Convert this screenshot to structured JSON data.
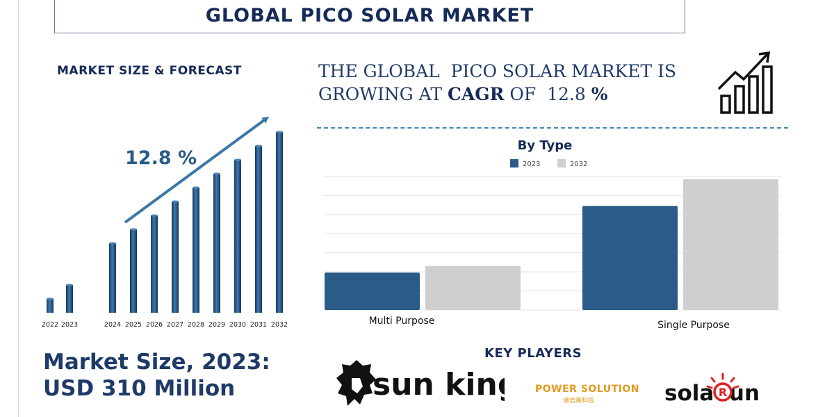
{
  "header": {
    "title": "GLOBAL PICO SOLAR MARKET"
  },
  "forecast": {
    "heading": "MARKET SIZE & FORECAST",
    "cagr_label": "12.8 %",
    "market_size_line1": "Market Size, 2023:",
    "market_size_line2": "USD 310 Million"
  },
  "headline": {
    "line1": "THE GLOBAL  PICO SOLAR MARKET IS",
    "line2_prefix": "GROWING AT ",
    "line2_cagr": "CAGR",
    "line2_middle": " OF  12.8 ",
    "line2_pct": "%"
  },
  "key_players": {
    "heading": "KEY PLAYERS",
    "sun_king": "sun king",
    "power_solution": "POWER SOLUTION",
    "power_solution_sub": "诚信阑科技",
    "solarun": "sola  un",
    "solarun_mark": "R"
  },
  "colors": {
    "bar_2023": "#2a5b89",
    "bar_2032": "#cfcfcf",
    "navy": "#152a57"
  },
  "icons": [
    "growth-chart-icon",
    "lion-logo-icon",
    "bulb-logo-icon"
  ],
  "chart_data": [
    {
      "type": "bar",
      "title": "",
      "categories": [
        "2022",
        "2023",
        "2024",
        "2025",
        "2026",
        "2027",
        "2028",
        "2029",
        "2030",
        "2031",
        "2032"
      ],
      "values": [
        1,
        2,
        5,
        6,
        7,
        8,
        9,
        10,
        11,
        12,
        13
      ],
      "annotation": "12.8 %"
    },
    {
      "type": "bar",
      "title": "By Type",
      "categories": [
        "Multi Purpose",
        "Single Purpose"
      ],
      "series": [
        {
          "name": "2023",
          "values": [
            2.8,
            7.8
          ]
        },
        {
          "name": "2032",
          "values": [
            3.3,
            9.8
          ]
        }
      ],
      "legend": "top-center",
      "grid": true,
      "ylim": [
        0,
        10
      ]
    }
  ]
}
